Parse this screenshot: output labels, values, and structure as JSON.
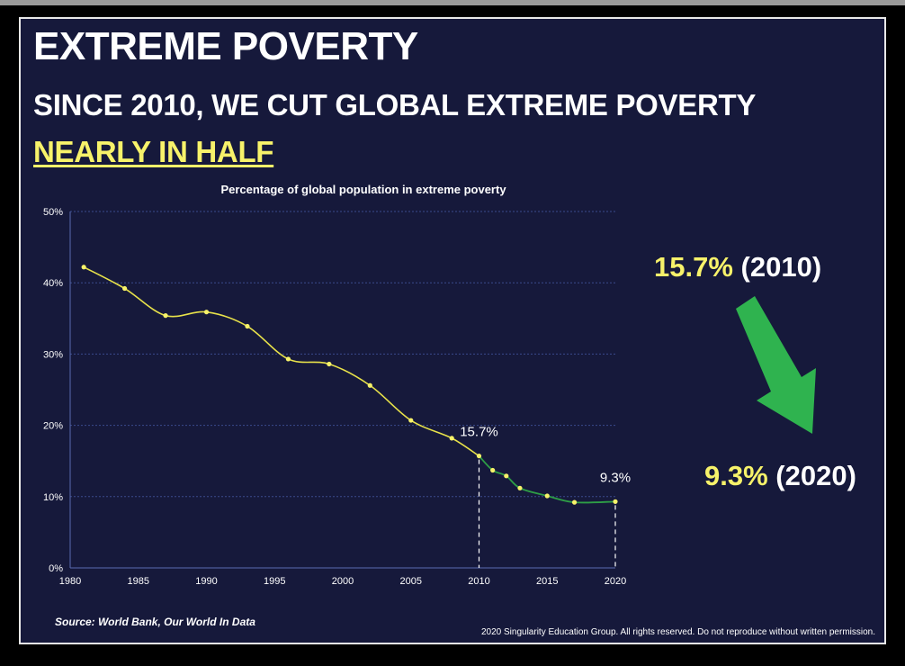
{
  "slide": {
    "heading": "EXTREME POVERTY",
    "subheading_plain": "SINCE 2010, WE CUT GLOBAL EXTREME POVERTY ",
    "subheading_highlight": "NEARLY IN HALF",
    "callout_start_value": "15.7%",
    "callout_start_year": "(2010)",
    "callout_end_value": "9.3%",
    "callout_end_year": "(2020)",
    "source": "Source: World Bank, Our World In Data",
    "copyright": "2020 Singularity Education Group. All rights reserved. Do not reproduce without written permission."
  },
  "colors": {
    "background": "#16193b",
    "accent_yellow": "#f7f26a",
    "line_pre_2010": "#e8e24a",
    "line_post_2010": "#2e9e46",
    "arrow_green": "#2fb34f",
    "gridline": "#3a4a8c"
  },
  "chart_data": {
    "type": "line",
    "title": "Percentage of global population in extreme poverty",
    "xlabel": "",
    "ylabel": "",
    "xlim": [
      1980,
      2020
    ],
    "ylim": [
      0,
      50
    ],
    "x_ticks": [
      1980,
      1985,
      1990,
      1995,
      2000,
      2005,
      2010,
      2015,
      2020
    ],
    "y_ticks": [
      "0%",
      "10%",
      "20%",
      "30%",
      "40%",
      "50%"
    ],
    "y_tick_values": [
      0,
      10,
      20,
      30,
      40,
      50
    ],
    "grid": true,
    "series": [
      {
        "x": [
          1981,
          1984,
          1987,
          1990,
          1993,
          1996,
          1999,
          2002,
          2005,
          2008,
          2010,
          2011,
          2012,
          2013,
          2015,
          2017,
          2020
        ],
        "y": [
          42.2,
          39.2,
          35.4,
          35.9,
          33.9,
          29.3,
          28.6,
          25.6,
          20.7,
          18.2,
          15.7,
          13.7,
          12.9,
          11.2,
          10.1,
          9.2,
          9.3
        ]
      }
    ],
    "annotations": [
      {
        "x": 2010,
        "y": 15.7,
        "label": "15.7%"
      },
      {
        "x": 2020,
        "y": 9.3,
        "label": "9.3%"
      }
    ]
  }
}
